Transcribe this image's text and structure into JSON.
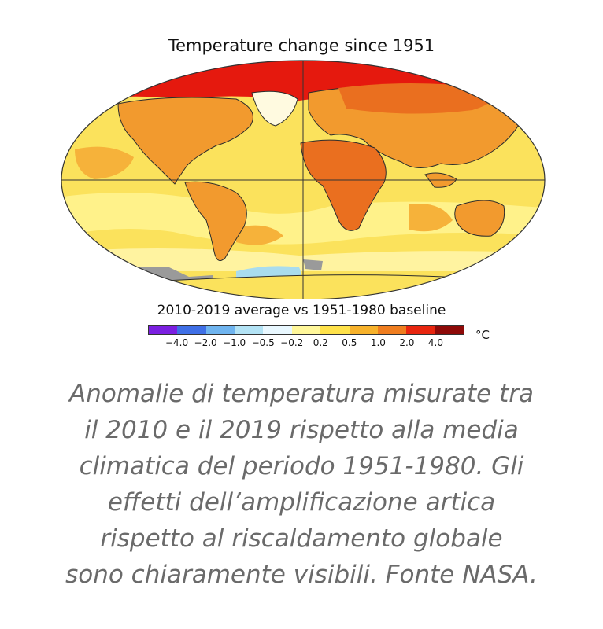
{
  "map": {
    "title": "Temperature change since 1951",
    "subtitle": "2010-2019 average vs 1951-1980 baseline",
    "colorbar": {
      "colors": [
        "#7b1fe0",
        "#3f6fe6",
        "#6fb4ef",
        "#b3e3f5",
        "#e9f8ff",
        "#fff79a",
        "#ffe24a",
        "#f7b22b",
        "#ef7d1f",
        "#e8260f",
        "#8e0a08"
      ],
      "tick_labels": [
        "−4.0",
        "−2.0",
        "−1.0",
        "−0.5",
        "−0.2",
        "0.2",
        "0.5",
        "1.0",
        "2.0",
        "4.0"
      ],
      "unit": "°C"
    },
    "colors": {
      "ocean_base": "#fbe25c",
      "ocean_light": "#fff28a",
      "land_warm": "#f29a2e",
      "land_hot": "#ea6f1f",
      "arctic": "#e5190e",
      "cold_spot": "#fffae0",
      "antarctic_cool": "#a9dcee",
      "no_data": "#9a9a9a",
      "coast": "#2c2c2c"
    }
  },
  "caption": {
    "lines": [
      "Anomalie di temperatura misurate tra",
      "il 2010 e il 2019 rispetto alla media",
      "climatica del periodo 1951-1980. Gli",
      "effetti dell’amplificazione artica",
      "rispetto al riscaldamento globale",
      "sono chiaramente visibili. Fonte NASA."
    ]
  }
}
